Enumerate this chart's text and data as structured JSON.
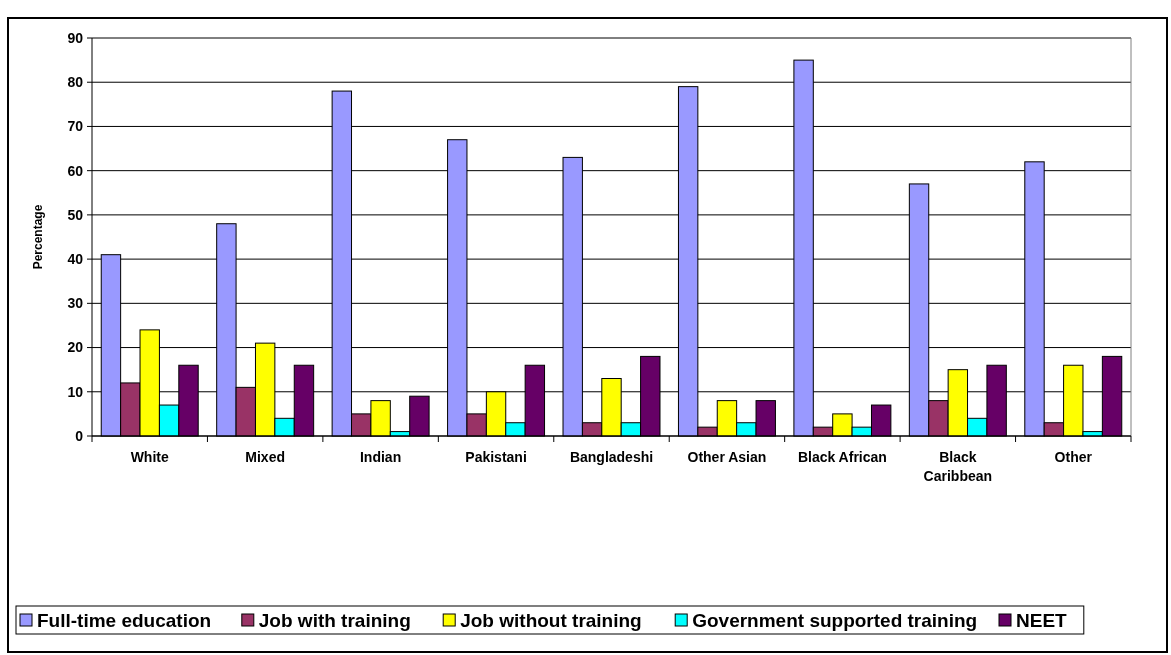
{
  "chart_data": {
    "type": "bar",
    "ylabel": "Percentage",
    "categories": [
      "White",
      "Mixed",
      "Indian",
      "Pakistani",
      "Bangladeshi",
      "Other Asian",
      "Black African",
      "Black Caribbean",
      "Other"
    ],
    "series": [
      {
        "name": "Full-time education",
        "color": "#9999ff",
        "values": [
          41,
          48,
          78,
          67,
          63,
          79,
          85,
          57,
          62
        ]
      },
      {
        "name": "Job with training",
        "color": "#993366",
        "values": [
          12,
          11,
          5,
          5,
          3,
          2,
          2,
          8,
          3
        ]
      },
      {
        "name": "Job without training",
        "color": "#ffff00",
        "values": [
          24,
          21,
          8,
          10,
          13,
          8,
          5,
          15,
          16
        ]
      },
      {
        "name": "Government supported training",
        "color": "#00ffff",
        "values": [
          7,
          4,
          1,
          3,
          3,
          3,
          2,
          4,
          1
        ]
      },
      {
        "name": "NEET",
        "color": "#660066",
        "values": [
          16,
          16,
          9,
          16,
          18,
          8,
          7,
          16,
          18
        ]
      }
    ],
    "ylim": [
      0,
      90
    ],
    "yticks": [
      0,
      10,
      20,
      30,
      40,
      50,
      60,
      70,
      80,
      90
    ],
    "grid": "y",
    "legend": "bottom"
  }
}
